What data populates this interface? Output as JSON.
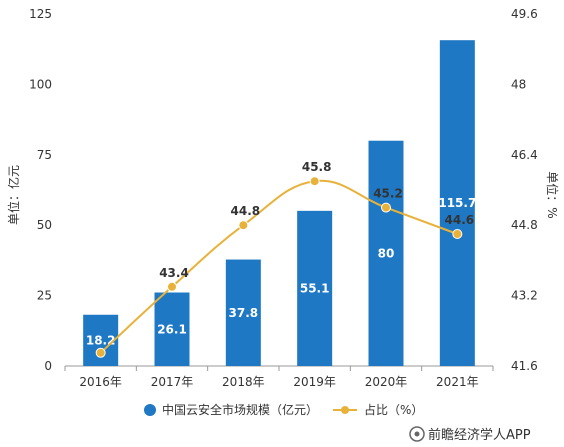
{
  "chart_data": {
    "type": "bar",
    "categories": [
      "2016年",
      "2017年",
      "2018年",
      "2019年",
      "2020年",
      "2021年"
    ],
    "series": [
      {
        "name": "中国云安全市场规模（亿元）",
        "type": "bar",
        "axis": "left",
        "color": "#1f78c4",
        "values": [
          18.2,
          26.1,
          37.8,
          55.1,
          80,
          115.7
        ],
        "labels": [
          "18.2",
          "26.1",
          "37.8",
          "55.1",
          "80",
          "115.7"
        ]
      },
      {
        "name": "占比（%）",
        "type": "line",
        "axis": "right",
        "color": "#e8b23a",
        "values": [
          41.9,
          43.4,
          44.8,
          45.8,
          45.2,
          44.6
        ],
        "labels": [
          "",
          "43.4",
          "44.8",
          "45.8",
          "45.2",
          "44.6"
        ]
      }
    ],
    "ylabel": "单位：亿元",
    "y2label": "单位：%",
    "ylim": [
      0,
      125
    ],
    "y2lim": [
      41.6,
      49.6
    ],
    "yticks": [
      "0",
      "25",
      "50",
      "75",
      "100",
      "125"
    ],
    "y2ticks": [
      "41.6",
      "43.2",
      "44.8",
      "46.4",
      "48",
      "49.6"
    ],
    "grid": false,
    "legend_position": "bottom"
  },
  "watermark": "前瞻经济学人APP"
}
